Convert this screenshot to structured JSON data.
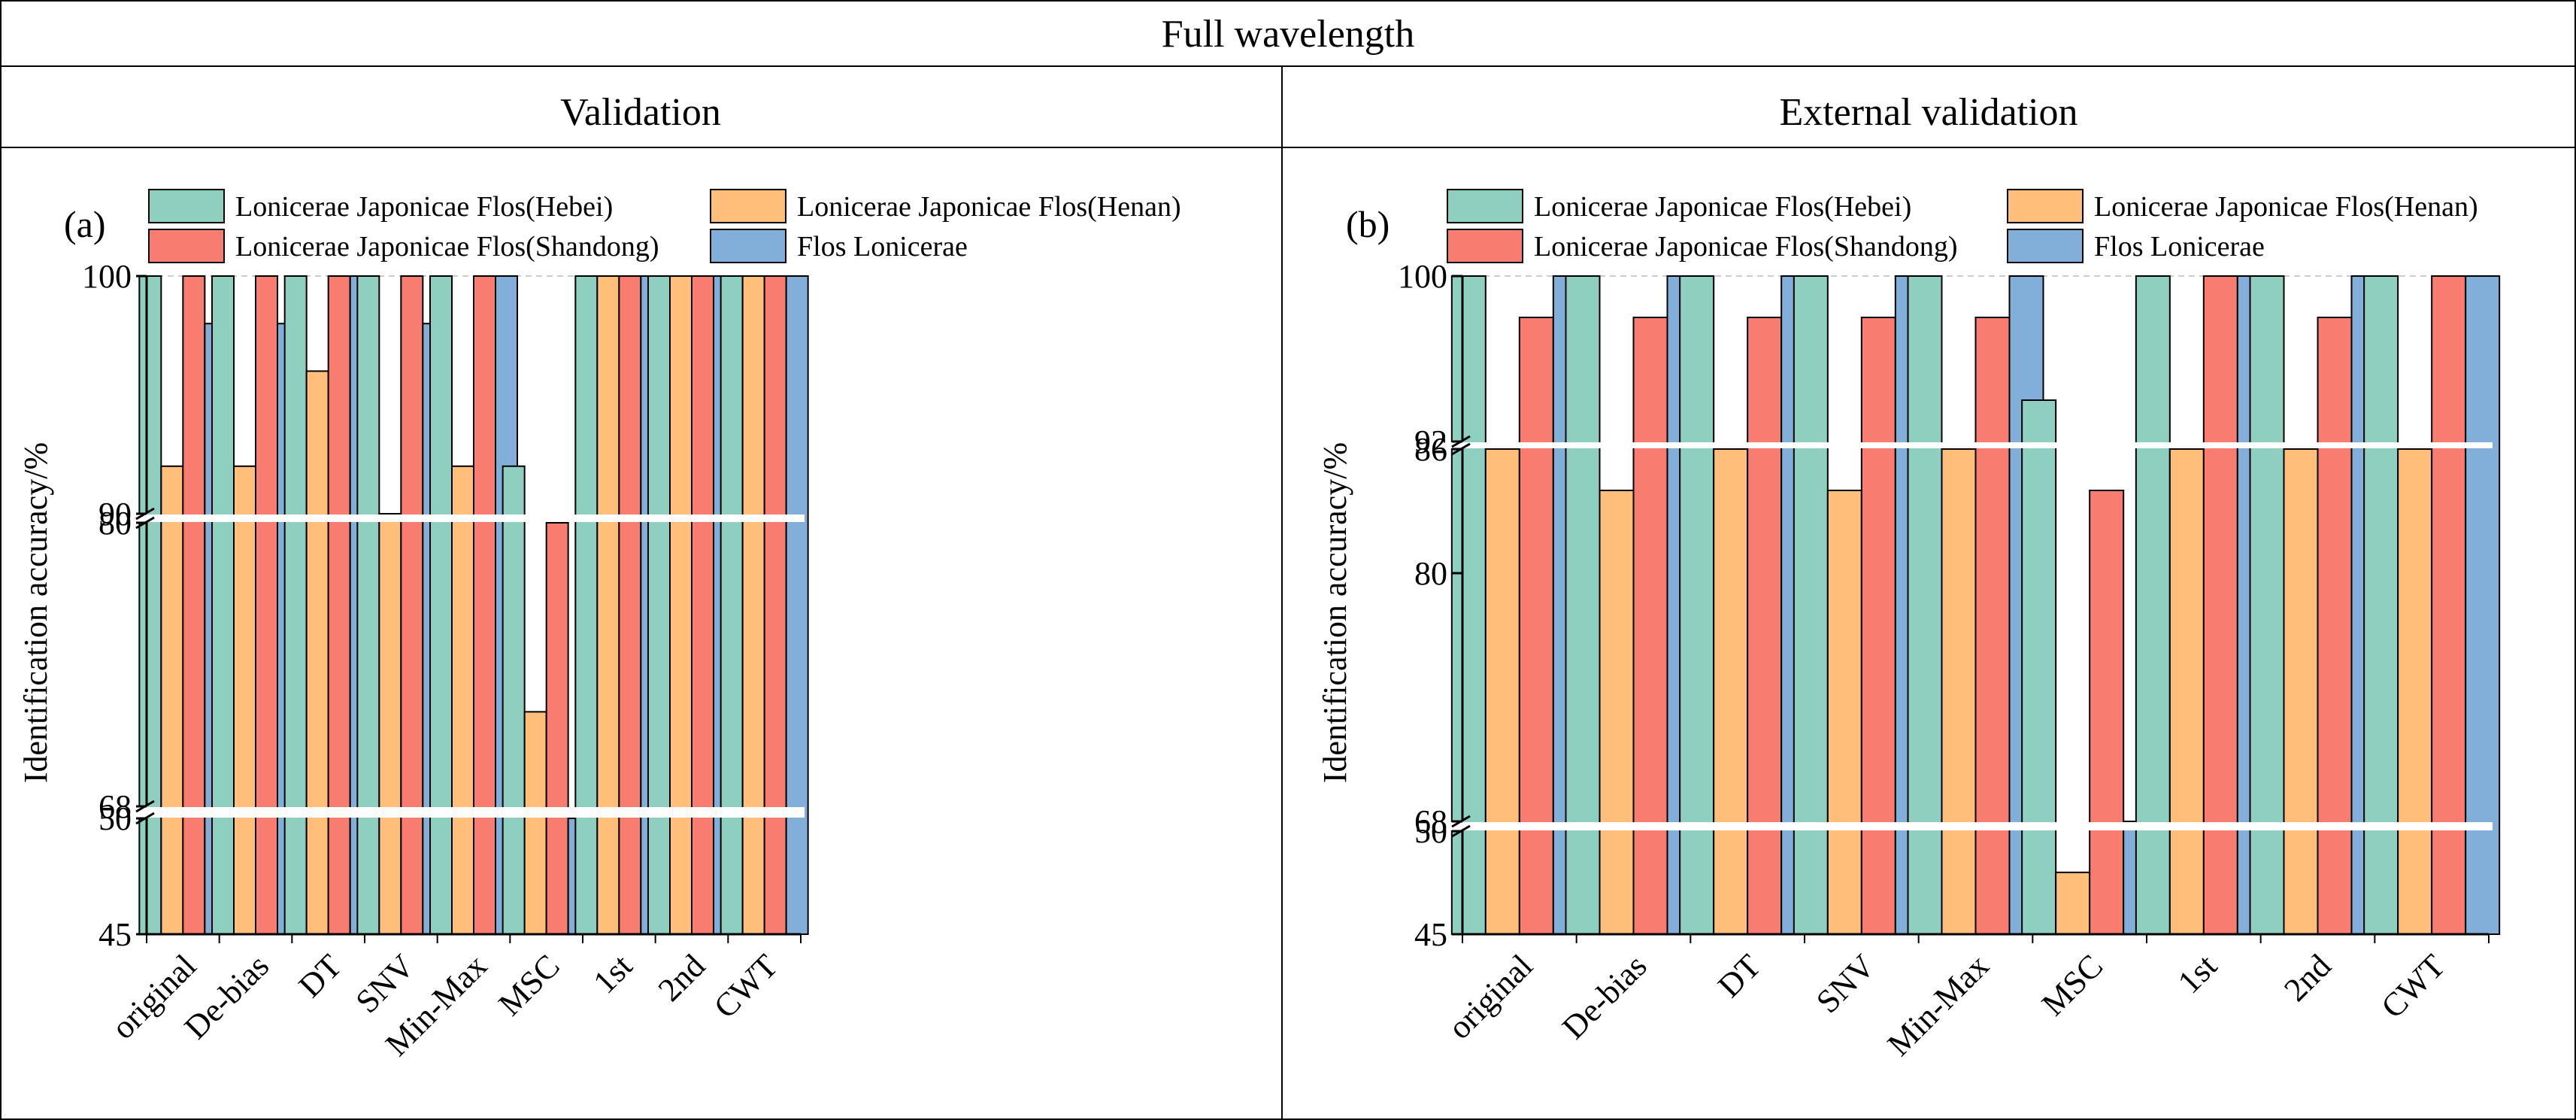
{
  "header": {
    "title": "Full wavelength",
    "left_heading": "Validation",
    "right_heading": "External validation"
  },
  "colors": {
    "hebei": "#8ecfc0",
    "henan": "#ffbe7a",
    "shandong": "#f87c6f",
    "flos": "#82afda",
    "reference_line": "#cccccc"
  },
  "chart_data": [
    {
      "type": "bar",
      "panel_label": "(a)",
      "title": "",
      "xlabel": "",
      "ylabel": "Identification accuracy/%",
      "ylim": [
        45,
        100
      ],
      "broken_axis": [
        [
          45,
          50
        ],
        [
          68,
          80
        ],
        [
          90,
          100
        ]
      ],
      "y_ticks": [
        45,
        50,
        68,
        80,
        90,
        100
      ],
      "reference_line_y": 100,
      "legend_position": "top",
      "categories": [
        "original",
        "De-bias",
        "DT",
        "SNV",
        "Min-Max",
        "MSC",
        "1st",
        "2nd",
        "CWT"
      ],
      "series": [
        {
          "name": "Lonicerae Japonicae Flos(Hebei)",
          "color_key": "hebei",
          "values": [
            100,
            100,
            100,
            100,
            100,
            92,
            100,
            100,
            100
          ]
        },
        {
          "name": "Lonicerae Japonicae Flos(Henan)",
          "color_key": "henan",
          "values": [
            92,
            92,
            96,
            90,
            92,
            72,
            100,
            100,
            100
          ]
        },
        {
          "name": "Lonicerae Japonicae Flos(Shandong)",
          "color_key": "shandong",
          "values": [
            100,
            100,
            100,
            100,
            100,
            80,
            100,
            100,
            100
          ]
        },
        {
          "name": "Flos Lonicerae",
          "color_key": "flos",
          "values": [
            98,
            98,
            100,
            98,
            100,
            50,
            100,
            100,
            100
          ]
        }
      ]
    },
    {
      "type": "bar",
      "panel_label": "(b)",
      "title": "",
      "xlabel": "",
      "ylabel": "Identification accuracy/%",
      "ylim": [
        45,
        100
      ],
      "broken_axis": [
        [
          45,
          50
        ],
        [
          68,
          86
        ],
        [
          92,
          100
        ]
      ],
      "y_ticks": [
        45,
        50,
        68,
        80,
        86,
        92,
        100
      ],
      "reference_line_y": 100,
      "legend_position": "top",
      "categories": [
        "original",
        "De-bias",
        "DT",
        "SNV",
        "Min-Max",
        "MSC",
        "1st",
        "2nd",
        "CWT"
      ],
      "series": [
        {
          "name": "Lonicerae Japonicae Flos(Hebei)",
          "color_key": "hebei",
          "values": [
            100,
            100,
            100,
            100,
            100,
            94,
            100,
            100,
            100
          ]
        },
        {
          "name": "Lonicerae Japonicae Flos(Henan)",
          "color_key": "henan",
          "values": [
            86,
            84,
            86,
            84,
            86,
            48,
            86,
            86,
            86
          ]
        },
        {
          "name": "Lonicerae Japonicae Flos(Shandong)",
          "color_key": "shandong",
          "values": [
            98,
            98,
            98,
            98,
            98,
            84,
            100,
            98,
            100
          ]
        },
        {
          "name": "Flos Lonicerae",
          "color_key": "flos",
          "values": [
            100,
            100,
            100,
            100,
            100,
            68,
            100,
            100,
            100
          ]
        }
      ]
    }
  ]
}
